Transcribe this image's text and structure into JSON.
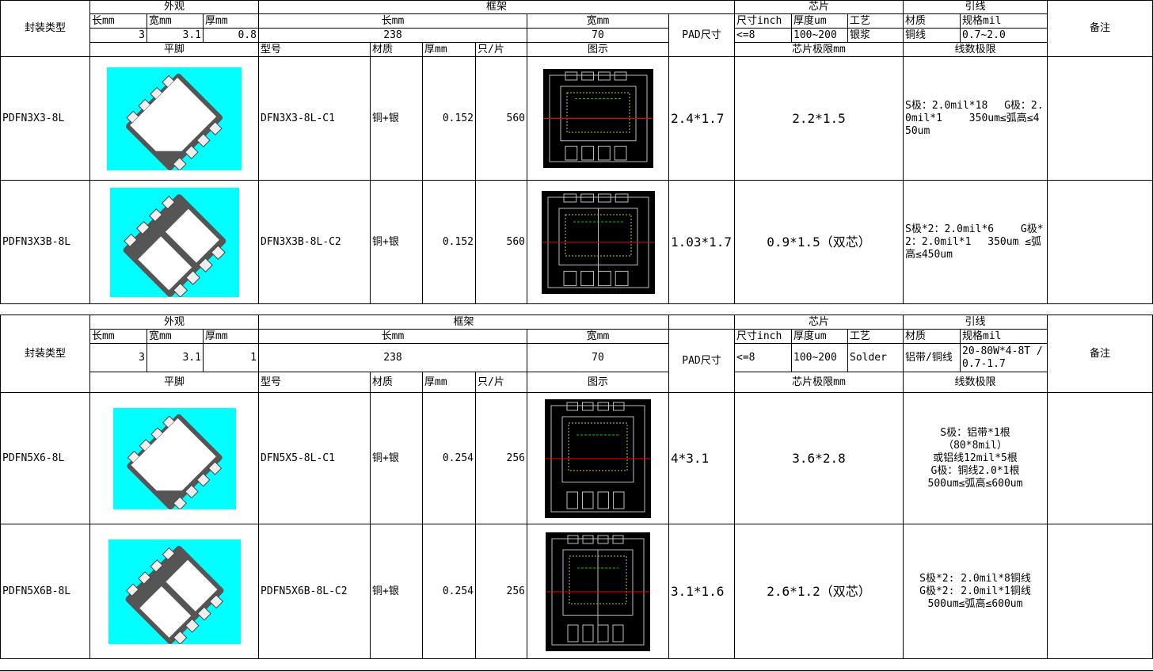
{
  "headers": {
    "package_type": "封装类型",
    "appearance": "外观",
    "frame": "框架",
    "chip": "芯片",
    "wire": "引线",
    "note": "备注",
    "len_mm": "长mm",
    "wid_mm": "宽mm",
    "thk_mm": "厚mm",
    "pad_size": "PAD尺寸",
    "size_inch": "尺寸inch",
    "thk_um": "厚度um",
    "process": "工艺",
    "material": "材质",
    "spec_mil": "规格mil",
    "flat_lead": "平脚",
    "model": "型号",
    "thk": "厚mm",
    "per_strip": "只/片",
    "diagram": "图示",
    "chip_limit": "芯片极限mm",
    "wire_limit": "线数极限"
  },
  "blocks": [
    {
      "spec": {
        "len": "3",
        "wid": "3.1",
        "thk": "0.8",
        "frame_len": "238",
        "frame_wid": "70",
        "size_inch": "<=8",
        "thk_um": "100~200",
        "process": "银浆",
        "wire_mat": "铜线",
        "wire_spec": "0.7~2.0"
      },
      "rows": [
        {
          "type": "PDFN3X3-8L",
          "model": "DFN3X3-8L-C1",
          "material": "铜+银",
          "thk": "0.152",
          "qty": "560",
          "pad": "2.4*1.7",
          "chip_limit": "2.2*1.5",
          "wire_limit": "S极：2.0mil*18　 G极：2.0mil*1　　 350um≤弧高≤450um",
          "note": "",
          "dual": false
        },
        {
          "type": "PDFN3X3B-8L",
          "model": "DFN3X3B-8L-C2",
          "material": "铜+银",
          "thk": "0.152",
          "qty": "560",
          "pad": "1.03*1.7",
          "chip_limit": "0.9*1.5（双芯）",
          "wire_limit": "S极*2：2.0mil*6　　 G极*2：2.0mil*1　 350um ≤弧高≤450um",
          "note": "",
          "dual": true
        }
      ]
    },
    {
      "spec": {
        "len": "3",
        "wid": "3.1",
        "thk": "1",
        "frame_len": "238",
        "frame_wid": "70",
        "size_inch": "<=8",
        "thk_um": "100~200",
        "process": "Solder",
        "wire_mat": "铝带/铜线",
        "wire_spec": "20-80W*4-8T /0.7-1.7"
      },
      "rows": [
        {
          "type": "PDFN5X6-8L",
          "model": "DFN5X5-8L-C1",
          "material": "铜+银",
          "thk": "0.254",
          "qty": "256",
          "pad": "4*3.1",
          "chip_limit": "3.6*2.8",
          "wire_limit": "S极：铝带*1根\n（80*8mil）\n或铝线12mil*5根\nG极：铜线2.0*1根\n500um≤弧高≤600um",
          "note": "",
          "dual": false
        },
        {
          "type": "PDFN5X6B-8L",
          "model": "PDFN5X6B-8L-C2",
          "material": "铜+银",
          "thk": "0.254",
          "qty": "256",
          "pad": "3.1*1.6",
          "chip_limit": "2.6*1.2（双芯）",
          "wire_limit": "S极*2: 2.0mil*8铜线\nG极*2: 2.0mil*1铜线\n500um≤弧高≤600um",
          "note": "",
          "dual": true
        }
      ]
    }
  ],
  "colors": {
    "chip_bg": "#00ffff",
    "diagram_bg": "#000000"
  }
}
